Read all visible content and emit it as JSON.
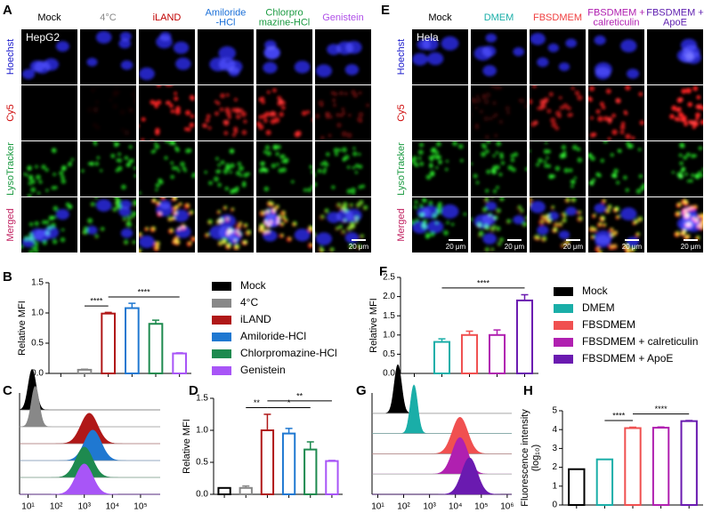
{
  "panel_labels": [
    "A",
    "B",
    "C",
    "D",
    "E",
    "F",
    "G",
    "H"
  ],
  "microscopy": [
    {
      "cell_line": "HepG2",
      "columns": [
        [
          "Mock"
        ],
        [
          "4°C"
        ],
        [
          "iLAND"
        ],
        [
          "Amiloride",
          "-HCl"
        ],
        [
          "Chlorpro",
          "mazine-HCl"
        ],
        [
          "Genistein"
        ]
      ],
      "column_colors": [
        "#000000",
        "#888888",
        "#c00000",
        "#1a6fd8",
        "#1a9a40",
        "#b050e8"
      ],
      "rows": [
        "Hoechst",
        "Cy5",
        "LysoTracker",
        "Merged"
      ],
      "row_colors": [
        "#1a1acc",
        "#d01010",
        "#1a9a40",
        "#c02060"
      ],
      "scale_bar": "20 μm"
    },
    {
      "cell_line": "Hela",
      "columns": [
        [
          "Mock"
        ],
        [
          "DMEM"
        ],
        [
          "FBSDMEM"
        ],
        [
          "FBSDMEM +",
          "calreticulin"
        ],
        [
          "FBSDMEM +",
          "ApoE"
        ]
      ],
      "column_colors": [
        "#000000",
        "#1aaea8",
        "#f04040",
        "#b020b0",
        "#6020b0"
      ],
      "rows": [
        "Hoechst",
        "Cy5",
        "LysoTracker",
        "Merged"
      ],
      "row_colors": [
        "#1a1acc",
        "#d01010",
        "#1a9a40",
        "#c02060"
      ],
      "scale_bar": "20 μm"
    }
  ],
  "chart_data": [
    {
      "type": "bar",
      "ylabel": [
        "Relative MFI"
      ],
      "categories": [
        "Mock",
        "4°C",
        "iLAND",
        "Amiloride-HCl",
        "Chlorpromazine-HCl",
        "Genistein"
      ],
      "colors": [
        "#000000",
        "#888888",
        "#b01818",
        "#1f78d1",
        "#1e8a4f",
        "#a855f7"
      ],
      "values": [
        0,
        0.06,
        0.99,
        1.08,
        0.82,
        0.33
      ],
      "errors": [
        0,
        0.01,
        0.02,
        0.08,
        0.06,
        0.01
      ],
      "ylim": [
        0,
        1.5
      ],
      "yticks": [
        {
          "value": 0,
          "label": "0.0"
        },
        0.5,
        {
          "value": 1,
          "label": "1.0"
        },
        1.5
      ],
      "annotations": [
        {
          "text": "****",
          "from": 1,
          "to": 2
        },
        {
          "text": "****",
          "from": 2,
          "to": 5
        }
      ]
    },
    {
      "type": "density",
      "log_x": true,
      "xlim": [
        5,
        500000
      ],
      "xticks": [
        {
          "value": 10,
          "label": "10¹"
        },
        {
          "value": 100,
          "label": "10²"
        },
        {
          "value": 1000,
          "label": "10³"
        },
        {
          "value": 10000,
          "label": "10⁴"
        },
        {
          "value": 100000,
          "label": "10⁵"
        }
      ],
      "series": [
        {
          "color": "#000000",
          "peak": 14
        },
        {
          "color": "#888888",
          "peak": 18
        },
        {
          "color": "#b01818",
          "peak": 1500
        },
        {
          "color": "#1f78d1",
          "peak": 2000
        },
        {
          "color": "#1e8a4f",
          "peak": 1000
        },
        {
          "color": "#a855f7",
          "peak": 1000
        }
      ]
    },
    {
      "type": "bar",
      "ylabel": [
        "Relative MFI"
      ],
      "colors": [
        "#000000",
        "#888888",
        "#b01818",
        "#1f78d1",
        "#1e8a4f",
        "#a855f7"
      ],
      "values": [
        0.1,
        0.1,
        1.0,
        0.95,
        0.7,
        0.52
      ],
      "errors": [
        0,
        0.03,
        0.25,
        0.08,
        0.12,
        0.01
      ],
      "ylim": [
        0,
        1.5
      ],
      "yticks": [
        {
          "value": 0,
          "label": "0.0"
        },
        0.5,
        {
          "value": 1,
          "label": "1.0"
        },
        1.5
      ],
      "annotations": [
        {
          "text": "**",
          "from": 1,
          "to": 2
        },
        {
          "text": "*",
          "from": 2,
          "to": 4
        },
        {
          "text": "**",
          "from": 2,
          "to": 5
        }
      ]
    },
    {
      "type": "bar",
      "ylabel": [
        "Relative MFI"
      ],
      "categories": [
        "Mock",
        "DMEM",
        "FBSDMEM",
        "FBSDMEM + calreticulin",
        "FBSDMEM + ApoE"
      ],
      "colors": [
        "#000000",
        "#1aaea8",
        "#f05050",
        "#b020b0",
        "#6a1ab0"
      ],
      "values": [
        0,
        0.82,
        1.0,
        1.0,
        1.9
      ],
      "errors": [
        0,
        0.08,
        0.1,
        0.13,
        0.15
      ],
      "ylim": [
        0,
        2.5
      ],
      "yticks": [
        {
          "value": 0,
          "label": "0.0"
        },
        0.5,
        {
          "value": 1,
          "label": "1.0"
        },
        1.5,
        {
          "value": 2,
          "label": "2.0"
        },
        2.5
      ],
      "annotations": [
        {
          "text": "****",
          "from": 1,
          "to": 4
        }
      ]
    },
    {
      "type": "density",
      "log_x": true,
      "xlim": [
        6,
        1500000
      ],
      "xticks": [
        {
          "value": 10,
          "label": "10¹"
        },
        {
          "value": 100,
          "label": "10²"
        },
        {
          "value": 1000,
          "label": "10³"
        },
        {
          "value": 10000,
          "label": "10⁴"
        },
        {
          "value": 100000,
          "label": "10⁵"
        },
        {
          "value": 1000000,
          "label": "10⁶"
        }
      ],
      "series": [
        {
          "color": "#000000",
          "peak": 60
        },
        {
          "color": "#1aaea8",
          "peak": 250
        },
        {
          "color": "#f05050",
          "peak": 15000
        },
        {
          "color": "#b020b0",
          "peak": 15000
        },
        {
          "color": "#6a1ab0",
          "peak": 35000
        }
      ]
    },
    {
      "type": "bar",
      "ylabel": [
        "Fluorescence intensity",
        "(log₁₀)"
      ],
      "colors": [
        "#000000",
        "#1aaea8",
        "#f05050",
        "#b020b0",
        "#6a1ab0"
      ],
      "values": [
        1.9,
        2.42,
        4.08,
        4.1,
        4.45
      ],
      "errors": [
        0,
        0,
        0.05,
        0.04,
        0.03
      ],
      "ylim": [
        0,
        5
      ],
      "yticks": [
        0,
        1,
        2,
        3,
        4,
        5
      ],
      "annotations": [
        {
          "text": "****",
          "from": 1,
          "to": 2
        },
        {
          "text": "****",
          "from": 2,
          "to": 4
        }
      ]
    }
  ]
}
